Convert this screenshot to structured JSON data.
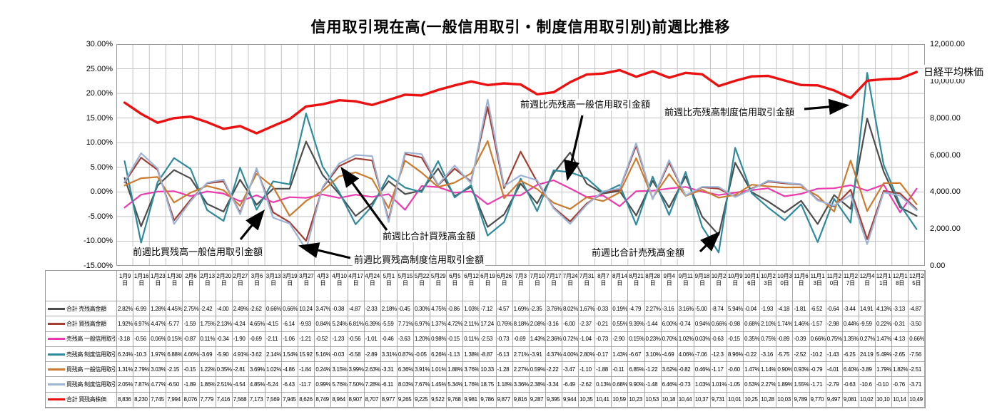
{
  "chart_data": {
    "type": "line",
    "title": "信用取引現在高(一般信用取引・制度信用取引別)前週比推移",
    "grid": true,
    "legend_position": "table-left",
    "left_axis": {
      "labels": [
        "30.00%",
        "25.00%",
        "20.00%",
        "15.00%",
        "10.00%",
        "5.00%",
        "0.00%",
        "-5.00%",
        "-10.00%",
        "-15.00%"
      ],
      "max": 30,
      "min": -15
    },
    "right_axis": {
      "labels": [
        "12,000.00",
        "10,000.00",
        "8,000.00",
        "6,000.00",
        "4,000.00",
        "2,000.00",
        "0.00"
      ],
      "max": 12000,
      "min": 0,
      "title": "日経平均株価"
    },
    "categories": [
      "1月9日",
      "1月16日",
      "1月23日",
      "1月30日",
      "2月6日",
      "2月13日",
      "2月20日",
      "2月27日",
      "3月6日",
      "3月13日",
      "3月19日",
      "3月27日",
      "4月3日",
      "4月10日",
      "4月17日",
      "4月24日",
      "5月1日",
      "5月15日",
      "5月22日",
      "5月29日",
      "6月5日",
      "6月12日",
      "6月19日",
      "6月26日",
      "7月3日",
      "7月10日",
      "7月17日",
      "7月24日",
      "7月31日",
      "8月7日",
      "8月14日",
      "8月21日",
      "8月28日",
      "9月4日",
      "9月11日",
      "9月18日",
      "10月2日",
      "10月9日",
      "10月16日",
      "10月23日",
      "10月30日",
      "11月6日",
      "11月13日",
      "11月20日",
      "11月27日",
      "12月4日",
      "12月11日",
      "12月18日",
      "12月25日"
    ],
    "series": [
      {
        "name": "合計 売残高金額",
        "color": "#4D4D4D",
        "axis": "left",
        "cells": [
          "2.82%",
          "-6.99",
          "1.28%",
          "4.45%",
          "2.75%",
          "-2.42",
          "-4.00",
          "2.49%",
          "-2.62",
          "0.66%",
          "0.66%",
          "10.24",
          "3.47%",
          "-0.38",
          "-4.87",
          "-2.33",
          "2.18%",
          "-0.45",
          "0.30%",
          "4.75%",
          "-0.86",
          "1.03%",
          "-7.12",
          "-4.57",
          "1.69%",
          "-2.35",
          "3.76%",
          "8.02%",
          "1.67%",
          "-0.33",
          "0.19%",
          "-4.79",
          "2.27%",
          "-3.16",
          "3.16%",
          "-5.00",
          "-8.74",
          "5.94%",
          "-0.04",
          "-1.93",
          "-4.18",
          "-1.81",
          "-6.52",
          "-0.64",
          "-3.44",
          "14.91",
          "4.13%",
          "-3.13",
          "-4.87"
        ]
      },
      {
        "name": "合計 買残高金額",
        "color": "#A23E33",
        "axis": "left",
        "cells": [
          "1.92%",
          "6.97%",
          "4.47%",
          "-5.77",
          "-1.59",
          "1.75%",
          "2.13%",
          "-4.24",
          "4.65%",
          "-4.15",
          "-6.14",
          "-9.93",
          "0.84%",
          "5.24%",
          "6.81%",
          "6.39%",
          "-5.59",
          "7.71%",
          "6.97%",
          "1.37%",
          "4.72%",
          "2.11%",
          "17.24",
          "0.76%",
          "8.18%",
          "2.08%",
          "-3.16",
          "-6.00",
          "-2.37",
          "-0.21",
          "0.55%",
          "9.39%",
          "-1.44",
          "6.00%",
          "-0.74",
          "0.94%",
          "0.66%",
          "-0.98",
          "0.68%",
          "2.10%",
          "1.74%",
          "1.46%",
          "-1.57",
          "-2.98",
          "0.44%",
          "-9.59",
          "0.22%",
          "-0.31",
          "-3.50"
        ]
      },
      {
        "name": "売残高 一般信用取引金額",
        "color": "#EB3CAF",
        "axis": "left",
        "cells": [
          "-3.18",
          "-0.56",
          "0.06%",
          "0.15%",
          "-0.87",
          "0.11%",
          "-0.34",
          "-1.90",
          "-0.69",
          "-2.11",
          "-1.06",
          "-1.21",
          "-0.52",
          "-1.23",
          "-0.56",
          "-1.01",
          "-0.46",
          "-3.63",
          "1.20%",
          "0.98%",
          "-0.15",
          "0.11%",
          "-2.53",
          "-0.73",
          "-0.69",
          "1.43%",
          "2.36%",
          "0.72%",
          "-1.04",
          "-0.73",
          "-2.90",
          "0.15%",
          "0.23%",
          "0.70%",
          "1.02%",
          "0.03%",
          "-0.63",
          "-0.15",
          "0.35%",
          "0.75%",
          "-0.89",
          "-0.39",
          "0.66%",
          "0.75%",
          "1.35%",
          "0.27%",
          "1.47%",
          "-4.13",
          "0.66%"
        ]
      },
      {
        "name": "売残高 制度信用取引金額",
        "color": "#2F8A9B",
        "axis": "left",
        "cells": [
          "6.24%",
          "-10.3",
          "1.97%",
          "6.88%",
          "4.66%",
          "-3.69",
          "-5.90",
          "4.91%",
          "-3.62",
          "2.14%",
          "1.54%",
          "15.92",
          "5.16%",
          "-0.03",
          "-6.58",
          "-2.89",
          "3.31%",
          "0.87%",
          "-0.05",
          "6.26%",
          "-1.13",
          "1.38%",
          "-8.87",
          "-6.13",
          "2.71%",
          "-3.91",
          "4.37%",
          "4.00%",
          "2.80%",
          "-0.17",
          "1.43%",
          "-6.67",
          "3.10%",
          "-4.69",
          "4.06%",
          "-7.06",
          "-12.3",
          "8.96%",
          "-0.22",
          "-3.16",
          "-5.75",
          "-2.52",
          "-10.2",
          "-1.43",
          "-6.25",
          "24.19",
          "5.49%",
          "-2.65",
          "-7.56"
        ]
      },
      {
        "name": "買残高 一般信用取引金額",
        "color": "#CB7B2F",
        "axis": "left",
        "cells": [
          "1.31%",
          "2.79%",
          "3.03%",
          "-2.15",
          "-0.15",
          "1.22%",
          "0.35%",
          "-2.81",
          "3.69%",
          "1.02%",
          "-4.86",
          "-1.84",
          "0.24%",
          "3.15%",
          "3.99%",
          "2.63%",
          "-3.31",
          "6.36%",
          "3.91%",
          "1.01%",
          "1.88%",
          "3.76%",
          "10.33",
          "-1.28",
          "2.27%",
          "0.59%",
          "-2.22",
          "-3.47",
          "-1.10",
          "-1.88",
          "-0.11",
          "6.85%",
          "-1.22",
          "3.62%",
          "-0.82",
          "0.46%",
          "-1.17",
          "-0.60",
          "1.47%",
          "1.14%",
          "0.90%",
          "0.93%",
          "-0.79",
          "-4.01",
          "6.40%",
          "-3.89",
          "1.79%",
          "1.82%",
          "-2.51"
        ]
      },
      {
        "name": "買残高 制度信用取引金額",
        "color": "#9DB4D6",
        "axis": "left",
        "cells": [
          "2.05%",
          "7.87%",
          "4.77%",
          "-6.50",
          "-1.89",
          "1.86%",
          "2.51%",
          "-4.54",
          "4.85%",
          "-5.24",
          "-6.43",
          "-11.7",
          "0.99%",
          "5.76%",
          "7.50%",
          "7.28%",
          "-6.11",
          "8.03%",
          "7.67%",
          "1.45%",
          "5.34%",
          "1.76%",
          "18.75",
          "1.18%",
          "3.36%",
          "2.38%",
          "-3.34",
          "-6.49",
          "-2.62",
          "0.13%",
          "0.68%",
          "9.90%",
          "-1.48",
          "6.46%",
          "-0.73",
          "1.03%",
          "1.01%",
          "-1.05",
          "0.53%",
          "2.27%",
          "1.89%",
          "1.55%",
          "-1.71",
          "-2.79",
          "-0.63",
          "-10.6",
          "-0.10",
          "-0.76",
          "-3.71"
        ]
      },
      {
        "name": "合計 買残高株価",
        "color": "#EC1111",
        "axis": "right",
        "cells": [
          "8,836",
          "8,230",
          "7,745",
          "7,994",
          "8,076",
          "7,779",
          "7,416",
          "7,568",
          "7,173",
          "7,569",
          "7,945",
          "8,626",
          "8,749",
          "8,964",
          "8,907",
          "8,707",
          "8,977",
          "9,265",
          "9,225",
          "9,522",
          "9,768",
          "9,981",
          "9,786",
          "9,877",
          "9,816",
          "9,287",
          "9,395",
          "9,944",
          "10,35",
          "10,41",
          "10,59",
          "10,23",
          "10,53",
          "10,18",
          "10,44",
          "10,37",
          "9,731",
          "10,01",
          "10,25",
          "10,28",
          "10,03",
          "9,789",
          "9,770",
          "9,497",
          "9,081",
          "10,02",
          "10,10",
          "10,14",
          "10,49"
        ],
        "values": [
          8836,
          8230,
          7745,
          7994,
          8076,
          7779,
          7416,
          7568,
          7173,
          7569,
          7945,
          8626,
          8749,
          8964,
          8907,
          8707,
          8977,
          9265,
          9225,
          9522,
          9768,
          9981,
          9786,
          9877,
          9816,
          9287,
          9395,
          9944,
          10356,
          10412,
          10597,
          10238,
          10534,
          10187,
          10444,
          10370,
          9731,
          10016,
          10257,
          10282,
          10034,
          9789,
          9770,
          9497,
          9081,
          10022,
          10107,
          10142,
          10494
        ]
      }
    ]
  },
  "annotations": [
    {
      "text": "前週比売残高一般信用取引金額"
    },
    {
      "text": "前週比売残高制度信用取引金額"
    },
    {
      "text": "前週比買残高一般信用取引金額"
    },
    {
      "text": "前週比買残高制度信用取引金額"
    },
    {
      "text": "前週比合計買残高金額"
    },
    {
      "text": "前週比合計売残高金額"
    }
  ]
}
